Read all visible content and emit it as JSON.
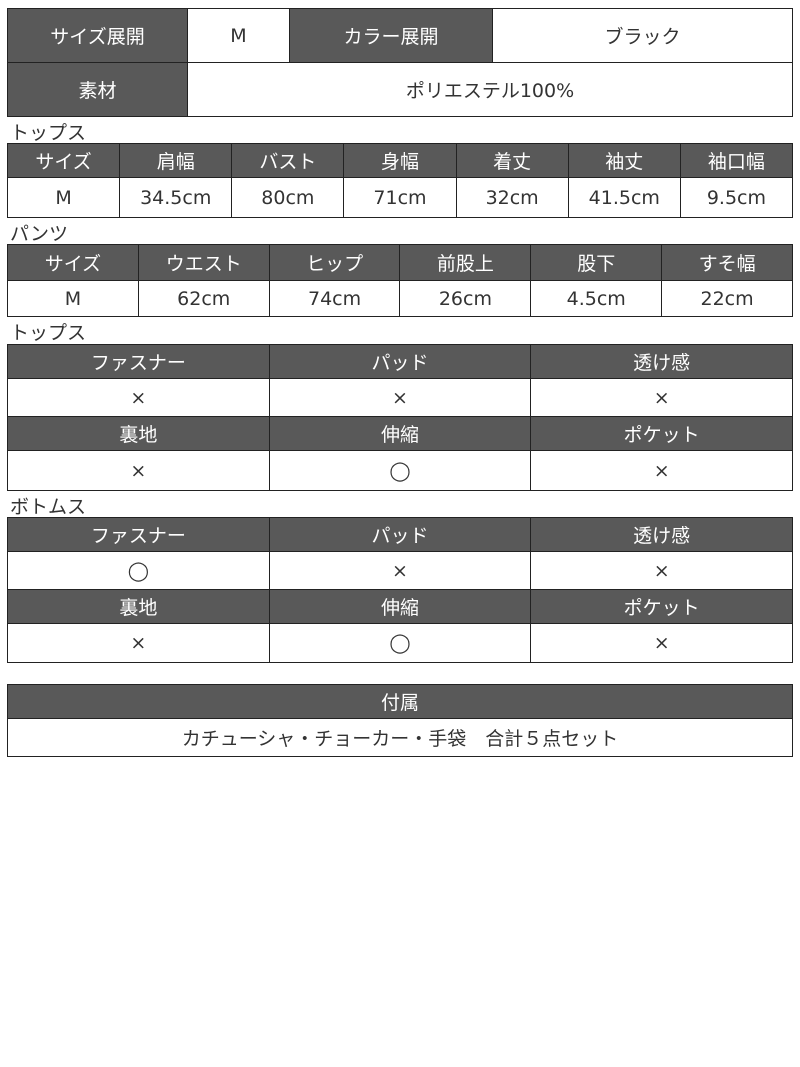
{
  "summary": {
    "size_label": "サイズ展開",
    "size_value": "M",
    "color_label": "カラー展開",
    "color_value": "ブラック",
    "material_label": "素材",
    "material_value": "ポリエステル100%"
  },
  "tops_size": {
    "section_label": "トップス",
    "headers": [
      "サイズ",
      "肩幅",
      "バスト",
      "身幅",
      "着丈",
      "袖丈",
      "袖口幅"
    ],
    "values": [
      "M",
      "34.5cm",
      "80cm",
      "71cm",
      "32cm",
      "41.5cm",
      "9.5cm"
    ]
  },
  "pants_size": {
    "section_label": "パンツ",
    "headers": [
      "サイズ",
      "ウエスト",
      "ヒップ",
      "前股上",
      "股下",
      "すそ幅"
    ],
    "values": [
      "M",
      "62cm",
      "74cm",
      "26cm",
      "4.5cm",
      "22cm"
    ]
  },
  "tops_features": {
    "section_label": "トップス",
    "headers1": [
      "ファスナー",
      "パッド",
      "透け感"
    ],
    "values1": [
      "×",
      "×",
      "×"
    ],
    "headers2": [
      "裏地",
      "伸縮",
      "ポケット"
    ],
    "values2": [
      "×",
      "◯",
      "×"
    ]
  },
  "bottoms_features": {
    "section_label": "ボトムス",
    "headers1": [
      "ファスナー",
      "パッド",
      "透け感"
    ],
    "values1": [
      "◯",
      "×",
      "×"
    ],
    "headers2": [
      "裏地",
      "伸縮",
      "ポケット"
    ],
    "values2": [
      "×",
      "◯",
      "×"
    ]
  },
  "accessories": {
    "header": "付属",
    "value": "カチューシャ・チョーカー・手袋　合計５点セット"
  },
  "colors": {
    "header_bg": "#595959",
    "border": "#222222"
  }
}
